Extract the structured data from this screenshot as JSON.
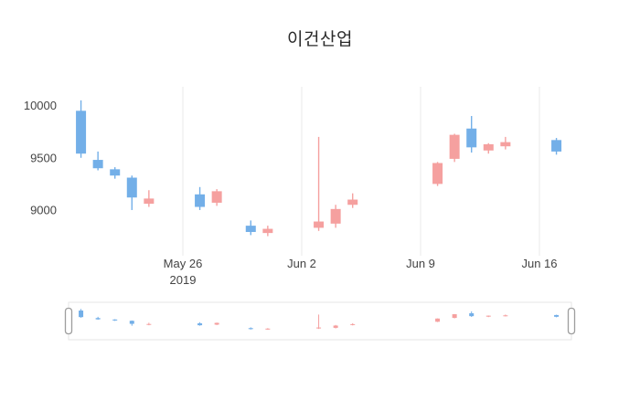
{
  "chart_data": {
    "type": "candlestick",
    "title": "이건산업",
    "legend_position": "none",
    "grid": "vertical-only",
    "increasing_color": "#F5A09F",
    "decreasing_color": "#73AFE8",
    "x": [
      "2019-05-20",
      "2019-05-21",
      "2019-05-22",
      "2019-05-23",
      "2019-05-24",
      "2019-05-27",
      "2019-05-28",
      "2019-05-30",
      "2019-05-31",
      "2019-06-03",
      "2019-06-04",
      "2019-06-05",
      "2019-06-10",
      "2019-06-11",
      "2019-06-12",
      "2019-06-13",
      "2019-06-14",
      "2019-06-17"
    ],
    "open": [
      9950,
      9480,
      9390,
      9310,
      9060,
      9150,
      9070,
      8850,
      8780,
      8830,
      8870,
      9050,
      9250,
      9490,
      9780,
      9570,
      9610,
      9670
    ],
    "high": [
      10050,
      9560,
      9410,
      9330,
      9190,
      9220,
      9200,
      8900,
      8850,
      9700,
      9050,
      9160,
      9460,
      9730,
      9900,
      9640,
      9700,
      9690
    ],
    "low": [
      9500,
      9380,
      9300,
      9000,
      9030,
      9000,
      9040,
      8760,
      8750,
      8800,
      8830,
      9020,
      9230,
      9460,
      9550,
      9540,
      9580,
      9530
    ],
    "close": [
      9540,
      9400,
      9330,
      9120,
      9110,
      9030,
      9180,
      8790,
      8820,
      8890,
      9010,
      9100,
      9450,
      9720,
      9600,
      9630,
      9650,
      9560
    ],
    "yaxis": {
      "range": [
        8580,
        10180
      ],
      "ticks": [
        {
          "value": 10000,
          "label": "10000"
        },
        {
          "value": 9500,
          "label": "9500"
        },
        {
          "value": 9000,
          "label": "9000"
        }
      ]
    },
    "xaxis": {
      "ticks": [
        {
          "date": "2019-05-26",
          "label": "May 26",
          "sublabel": "2019"
        },
        {
          "date": "2019-06-02",
          "label": "Jun 2",
          "sublabel": ""
        },
        {
          "date": "2019-06-09",
          "label": "Jun 9",
          "sublabel": ""
        },
        {
          "date": "2019-06-16",
          "label": "Jun 16",
          "sublabel": ""
        }
      ]
    },
    "rangeslider": {
      "visible": true
    }
  }
}
